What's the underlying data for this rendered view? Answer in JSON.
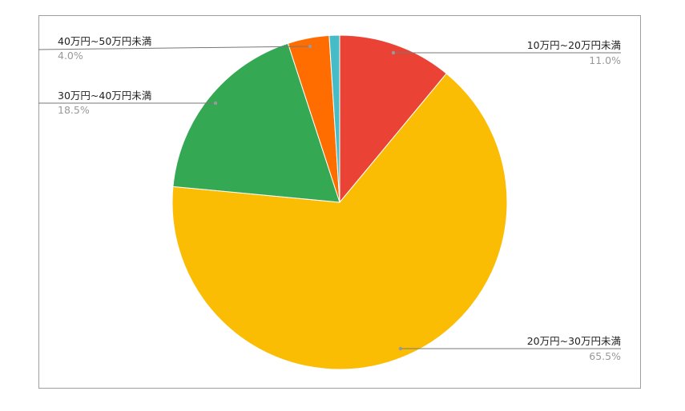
{
  "chart_data": {
    "type": "pie",
    "title": "",
    "start_angle": "12 o'clock, clockwise",
    "legend": "none (callout labels)",
    "slices": [
      {
        "label": "10万円~20万円未満",
        "value": 11.0,
        "value_label": "11.0%",
        "color": "#EA4335",
        "side": "right"
      },
      {
        "label": "20万円~30万円未満",
        "value": 65.5,
        "value_label": "65.5%",
        "color": "#FBBC04",
        "side": "right"
      },
      {
        "label": "30万円~40万円未満",
        "value": 18.5,
        "value_label": "18.5%",
        "color": "#34A853",
        "side": "left"
      },
      {
        "label": "40万円~50万円未満",
        "value": 4.0,
        "value_label": "4.0%",
        "color": "#FF6D01",
        "side": "left"
      },
      {
        "label": "",
        "value": 1.0,
        "value_label": "",
        "color": "#46BDC6",
        "side": "none"
      }
    ]
  }
}
